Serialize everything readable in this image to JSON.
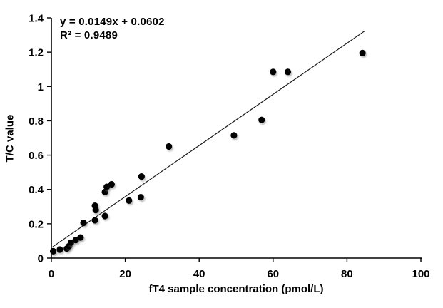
{
  "figure": {
    "background": "#ffffff",
    "border": "none"
  },
  "chart_data": {
    "type": "scatter",
    "title": "",
    "xlabel": "fT4 sample concentration (pmol/L)",
    "ylabel": "T/C value",
    "xlim": [
      0,
      100
    ],
    "ylim": [
      0,
      1.4
    ],
    "grid": false,
    "legend": "none",
    "marker_color": "#000000",
    "marker_radius": 4.6,
    "axis_color": "#000000",
    "trend_color": "#1a1a1a",
    "x_ticks": {
      "values": [
        0,
        20,
        40,
        60,
        80,
        100
      ],
      "labels": [
        "0",
        "20",
        "40",
        "60",
        "80",
        "100"
      ]
    },
    "y_ticks": {
      "values": [
        0,
        0.2,
        0.4,
        0.6,
        0.8,
        1,
        1.2,
        1.4
      ],
      "labels": [
        "0",
        "0.2",
        "0.4",
        "0.6",
        "0.8",
        "1",
        "1.2",
        "1.4"
      ]
    },
    "annotation": {
      "line1": "y = 0.0149x + 0.0602",
      "line2": "R² = 0.9489",
      "position": "top-left"
    },
    "trendline": {
      "slope": 0.0149,
      "intercept": 0.0602,
      "x_start": 0.3,
      "x_end": 84.8
    },
    "points": [
      [
        0.5,
        0.04
      ],
      [
        2.3,
        0.05
      ],
      [
        4.2,
        0.055
      ],
      [
        4.8,
        0.07
      ],
      [
        5.3,
        0.09
      ],
      [
        6.6,
        0.105
      ],
      [
        7.9,
        0.12
      ],
      [
        8.7,
        0.205
      ],
      [
        11.8,
        0.22
      ],
      [
        11.8,
        0.305
      ],
      [
        12.0,
        0.28
      ],
      [
        14.5,
        0.245
      ],
      [
        14.5,
        0.385
      ],
      [
        15.0,
        0.415
      ],
      [
        16.3,
        0.43
      ],
      [
        21.0,
        0.335
      ],
      [
        24.2,
        0.355
      ],
      [
        24.4,
        0.475
      ],
      [
        31.8,
        0.65
      ],
      [
        49.4,
        0.715
      ],
      [
        56.9,
        0.805
      ],
      [
        60.0,
        1.085
      ],
      [
        64.0,
        1.085
      ],
      [
        84.2,
        1.195
      ]
    ]
  }
}
